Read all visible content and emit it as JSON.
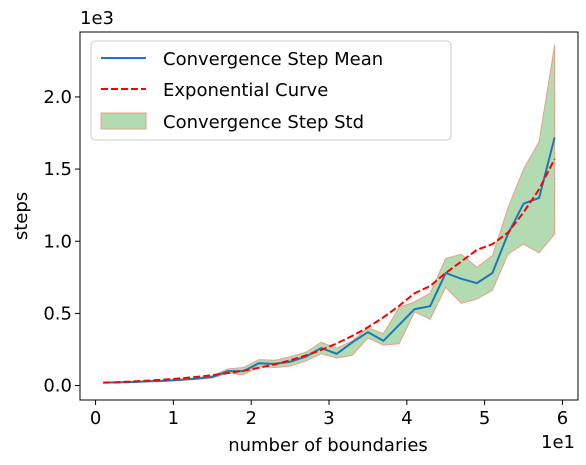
{
  "chart_data": {
    "type": "line",
    "xlabel": "number of boundaries",
    "ylabel": "steps",
    "x_offset_text": "1e1",
    "y_offset_text": "1e3",
    "xlim": [
      -0.2,
      6.2
    ],
    "ylim": [
      -0.1,
      2.45
    ],
    "x_ticks": [
      0,
      1,
      2,
      3,
      4,
      5,
      6
    ],
    "x_tick_labels": [
      "0",
      "1",
      "2",
      "3",
      "4",
      "5",
      "6"
    ],
    "y_ticks": [
      0.0,
      0.5,
      1.0,
      1.5,
      2.0
    ],
    "y_tick_labels": [
      "0.0",
      "0.5",
      "1.0",
      "1.5",
      "2.0"
    ],
    "grid": false,
    "legend_position": "top-left",
    "x": [
      0.1,
      0.3,
      0.5,
      0.7,
      0.9,
      1.1,
      1.3,
      1.5,
      1.7,
      1.9,
      2.1,
      2.3,
      2.5,
      2.7,
      2.9,
      3.1,
      3.3,
      3.5,
      3.7,
      3.9,
      4.1,
      4.3,
      4.5,
      4.7,
      4.9,
      5.1,
      5.3,
      5.5,
      5.7,
      5.9
    ],
    "series": [
      {
        "name": "Convergence Step Mean",
        "kind": "line",
        "color": "#1f77b4",
        "values": [
          0.02,
          0.022,
          0.025,
          0.03,
          0.033,
          0.04,
          0.048,
          0.06,
          0.1,
          0.1,
          0.155,
          0.15,
          0.165,
          0.2,
          0.26,
          0.22,
          0.3,
          0.37,
          0.31,
          0.42,
          0.53,
          0.55,
          0.78,
          0.74,
          0.71,
          0.78,
          1.05,
          1.26,
          1.3,
          1.72
        ]
      },
      {
        "name": "Exponential Curve",
        "kind": "dashed-line",
        "color": "#ff0000",
        "values": [
          0.02,
          0.024,
          0.029,
          0.035,
          0.042,
          0.05,
          0.06,
          0.072,
          0.086,
          0.103,
          0.123,
          0.147,
          0.175,
          0.208,
          0.247,
          0.292,
          0.344,
          0.404,
          0.473,
          0.552,
          0.64,
          0.69,
          0.78,
          0.86,
          0.94,
          0.98,
          1.06,
          1.2,
          1.36,
          1.57
        ]
      },
      {
        "name": "Convergence Step Std",
        "kind": "band",
        "color": "#b3dbb2",
        "edge_color": "#e8a08a",
        "lower": [
          0.018,
          0.02,
          0.023,
          0.027,
          0.03,
          0.036,
          0.043,
          0.052,
          0.085,
          0.075,
          0.13,
          0.125,
          0.135,
          0.17,
          0.22,
          0.19,
          0.21,
          0.33,
          0.28,
          0.29,
          0.51,
          0.46,
          0.68,
          0.57,
          0.6,
          0.66,
          0.91,
          0.98,
          0.92,
          1.05
        ],
        "upper": [
          0.022,
          0.024,
          0.027,
          0.033,
          0.036,
          0.044,
          0.053,
          0.068,
          0.115,
          0.125,
          0.18,
          0.175,
          0.2,
          0.23,
          0.3,
          0.26,
          0.31,
          0.4,
          0.36,
          0.54,
          0.58,
          0.64,
          0.88,
          0.91,
          0.82,
          0.9,
          1.23,
          1.5,
          1.69,
          2.36
        ]
      }
    ]
  }
}
